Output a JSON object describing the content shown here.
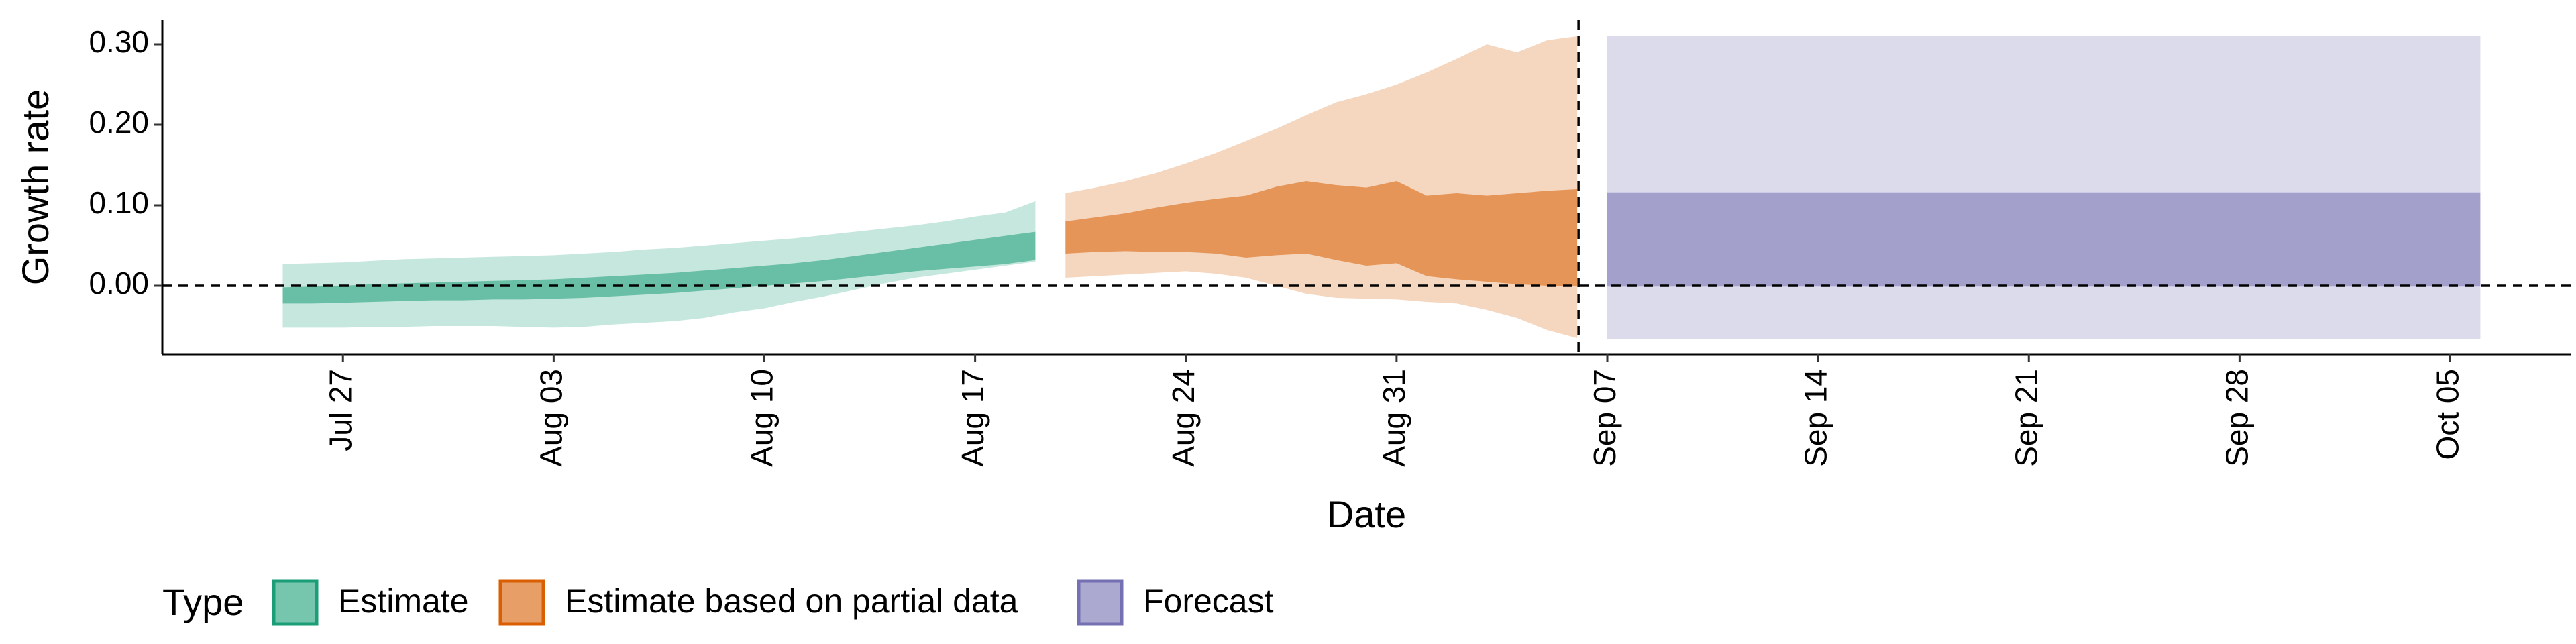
{
  "chart_data": {
    "type": "area",
    "title": "",
    "xlabel": "Date",
    "ylabel": "Growth rate",
    "xlim": [
      "2020-07-21",
      "2020-10-09"
    ],
    "ylim": [
      -0.085,
      0.33
    ],
    "x_tick_labels": [
      {
        "date": "2020-07-27",
        "label": "Jul 27"
      },
      {
        "date": "2020-08-03",
        "label": "Aug 03"
      },
      {
        "date": "2020-08-10",
        "label": "Aug 10"
      },
      {
        "date": "2020-08-17",
        "label": "Aug 17"
      },
      {
        "date": "2020-08-24",
        "label": "Aug 24"
      },
      {
        "date": "2020-08-31",
        "label": "Aug 31"
      },
      {
        "date": "2020-09-07",
        "label": "Sep 07"
      },
      {
        "date": "2020-09-14",
        "label": "Sep 14"
      },
      {
        "date": "2020-09-21",
        "label": "Sep 21"
      },
      {
        "date": "2020-09-28",
        "label": "Sep 28"
      },
      {
        "date": "2020-10-05",
        "label": "Oct 05"
      }
    ],
    "y_ticks": [
      0.0,
      0.1,
      0.2,
      0.3
    ],
    "y_tick_labels": [
      "0.00",
      "0.10",
      "0.20",
      "0.30"
    ],
    "hlines": [
      0.0
    ],
    "vline_date": "2020-09-06",
    "grid": false,
    "legend": {
      "title": "Type",
      "placement": "bottom-left",
      "entries": [
        {
          "label": "Estimate",
          "color": "#1b9e77"
        },
        {
          "label": "Estimate based on partial data",
          "color": "#d95f02"
        },
        {
          "label": "Forecast",
          "color": "#7570b3"
        }
      ]
    },
    "series": [
      {
        "type": "Estimate",
        "color": "#1b9e77",
        "dates": [
          "2020-07-25",
          "2020-07-26",
          "2020-07-27",
          "2020-07-28",
          "2020-07-29",
          "2020-07-30",
          "2020-07-31",
          "2020-08-01",
          "2020-08-02",
          "2020-08-03",
          "2020-08-04",
          "2020-08-05",
          "2020-08-06",
          "2020-08-07",
          "2020-08-08",
          "2020-08-09",
          "2020-08-10",
          "2020-08-11",
          "2020-08-12",
          "2020-08-13",
          "2020-08-14",
          "2020-08-15",
          "2020-08-16",
          "2020-08-17",
          "2020-08-18",
          "2020-08-19"
        ],
        "outer_upper": [
          0.027,
          0.028,
          0.029,
          0.031,
          0.033,
          0.034,
          0.035,
          0.036,
          0.037,
          0.038,
          0.04,
          0.042,
          0.045,
          0.047,
          0.05,
          0.053,
          0.056,
          0.059,
          0.063,
          0.067,
          0.071,
          0.075,
          0.08,
          0.086,
          0.091,
          0.105
        ],
        "outer_lower": [
          -0.052,
          -0.052,
          -0.052,
          -0.051,
          -0.051,
          -0.05,
          -0.05,
          -0.05,
          -0.051,
          -0.052,
          -0.051,
          -0.048,
          -0.046,
          -0.044,
          -0.04,
          -0.033,
          -0.028,
          -0.02,
          -0.013,
          -0.005,
          0.003,
          0.01,
          0.015,
          0.02,
          0.025,
          0.03
        ],
        "inner_upper": [
          -0.002,
          -0.001,
          0.0,
          0.002,
          0.003,
          0.004,
          0.005,
          0.006,
          0.007,
          0.008,
          0.01,
          0.012,
          0.014,
          0.016,
          0.019,
          0.022,
          0.025,
          0.028,
          0.032,
          0.037,
          0.042,
          0.047,
          0.052,
          0.057,
          0.062,
          0.067
        ],
        "inner_lower": [
          -0.022,
          -0.022,
          -0.021,
          -0.02,
          -0.019,
          -0.018,
          -0.018,
          -0.017,
          -0.017,
          -0.016,
          -0.015,
          -0.013,
          -0.011,
          -0.009,
          -0.006,
          -0.003,
          0.0,
          0.003,
          0.006,
          0.01,
          0.014,
          0.018,
          0.021,
          0.024,
          0.027,
          0.032
        ]
      },
      {
        "type": "Estimate based on partial data",
        "color": "#d95f02",
        "dates": [
          "2020-08-20",
          "2020-08-21",
          "2020-08-22",
          "2020-08-23",
          "2020-08-24",
          "2020-08-25",
          "2020-08-26",
          "2020-08-27",
          "2020-08-28",
          "2020-08-29",
          "2020-08-30",
          "2020-08-31",
          "2020-09-01",
          "2020-09-02",
          "2020-09-03",
          "2020-09-04",
          "2020-09-05",
          "2020-09-06"
        ],
        "outer_upper": [
          0.115,
          0.122,
          0.13,
          0.14,
          0.152,
          0.165,
          0.18,
          0.195,
          0.212,
          0.228,
          0.238,
          0.25,
          0.265,
          0.282,
          0.3,
          0.29,
          0.305,
          0.31
        ],
        "outer_lower": [
          0.01,
          0.012,
          0.014,
          0.016,
          0.018,
          0.015,
          0.01,
          0.0,
          -0.01,
          -0.015,
          -0.016,
          -0.017,
          -0.02,
          -0.022,
          -0.03,
          -0.04,
          -0.055,
          -0.065
        ],
        "inner_upper": [
          0.08,
          0.085,
          0.09,
          0.097,
          0.103,
          0.108,
          0.112,
          0.123,
          0.13,
          0.125,
          0.122,
          0.13,
          0.112,
          0.115,
          0.112,
          0.115,
          0.118,
          0.12
        ],
        "inner_lower": [
          0.04,
          0.042,
          0.043,
          0.042,
          0.042,
          0.04,
          0.035,
          0.038,
          0.04,
          0.032,
          0.025,
          0.028,
          0.012,
          0.008,
          0.005,
          0.002,
          0.0,
          0.0
        ]
      },
      {
        "type": "Forecast",
        "color": "#7570b3",
        "dates": [
          "2020-09-07",
          "2020-10-06"
        ],
        "outer_upper": [
          0.31,
          0.31
        ],
        "outer_lower": [
          -0.066,
          -0.066
        ],
        "inner_upper": [
          0.116,
          0.116
        ],
        "inner_lower": [
          -0.001,
          -0.001
        ]
      }
    ]
  }
}
